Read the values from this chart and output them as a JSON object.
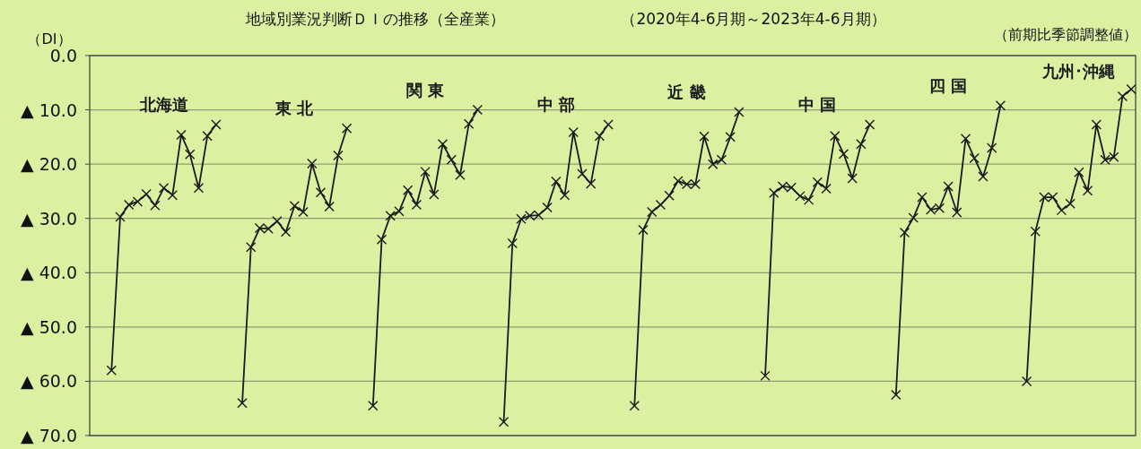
{
  "chart_data": {
    "type": "line",
    "title": "地域別業況判断ＤＩの推移（全産業）",
    "subtitle": "（2020年4-6月期～2023年4-6月期）",
    "ylabel": "（DI）",
    "annotations": [
      "（前期比季節調整値）"
    ],
    "categories": [
      null,
      null,
      null,
      null,
      null,
      null,
      null,
      null,
      null,
      null,
      null,
      null,
      null,
      null,
      null,
      null,
      null,
      null,
      null,
      null,
      null,
      null,
      null,
      null,
      null,
      null,
      null,
      null,
      null,
      null,
      null,
      null,
      null,
      null,
      null,
      null,
      null,
      null,
      null,
      null,
      null,
      null,
      null,
      null,
      null,
      null,
      null,
      null,
      null,
      null,
      null,
      null,
      null,
      null,
      null,
      null,
      null,
      null,
      null,
      null,
      null,
      null,
      null,
      null,
      null,
      null,
      null,
      null,
      null,
      null,
      null,
      null,
      null,
      null,
      null,
      null,
      null,
      null,
      null,
      null,
      null,
      null,
      null,
      null,
      null,
      null,
      null,
      null,
      null,
      null,
      null,
      null,
      null,
      null,
      null,
      null,
      null,
      null,
      null,
      null,
      null,
      null,
      null,
      null,
      null,
      null,
      null,
      null,
      null,
      null,
      null,
      null,
      null,
      null,
      null,
      null,
      null,
      null,
      null,
      null
    ],
    "series": [
      {
        "name": "北海道",
        "color": "#1a1a1a",
        "values": [
          null,
          null,
          58,
          29.7,
          27.5,
          26.9,
          25.5,
          27.6,
          24.4,
          25.7,
          14.6,
          18.2,
          24.4,
          14.8,
          12.7,
          null,
          null,
          null,
          null,
          null,
          null,
          null,
          null,
          null,
          null,
          null,
          null,
          null,
          null,
          null,
          null,
          null,
          null,
          null,
          null,
          null,
          null,
          null,
          null,
          null,
          null,
          null,
          null,
          null,
          null,
          null,
          null,
          null,
          null,
          null,
          null,
          null,
          null,
          null,
          null,
          null,
          null,
          null,
          null,
          null,
          null,
          null,
          null,
          null,
          null,
          null,
          null,
          null,
          null,
          null,
          null,
          null,
          null,
          null,
          null,
          null,
          null,
          null,
          null,
          null,
          null,
          null,
          null,
          null,
          null,
          null,
          null,
          null,
          null,
          null,
          null,
          null,
          null,
          null,
          null,
          null,
          null,
          null,
          null,
          null,
          null,
          null,
          null,
          null,
          null,
          null,
          null,
          null,
          null,
          null,
          null,
          null,
          null,
          null,
          null,
          null,
          null,
          null,
          null,
          null
        ]
      },
      {
        "name": "東 北",
        "color": "#1a1a1a",
        "values": [
          null,
          null,
          null,
          null,
          null,
          null,
          null,
          null,
          null,
          null,
          null,
          null,
          null,
          null,
          null,
          null,
          null,
          64,
          35.3,
          31.8,
          31.9,
          30.5,
          32.5,
          27.7,
          28.8,
          19.9,
          25.2,
          27.8,
          18.4,
          13.4,
          null,
          null,
          null,
          null,
          null,
          null,
          null,
          null,
          null,
          null,
          null,
          null,
          null,
          null,
          null,
          null,
          null,
          null,
          null,
          null,
          null,
          null,
          null,
          null,
          null,
          null,
          null,
          null,
          null,
          null,
          null,
          null,
          null,
          null,
          null,
          null,
          null,
          null,
          null,
          null,
          null,
          null,
          null,
          null,
          null,
          null,
          null,
          null,
          null,
          null,
          null,
          null,
          null,
          null,
          null,
          null,
          null,
          null,
          null,
          null,
          null,
          null,
          null,
          null,
          null,
          null,
          null,
          null,
          null,
          null,
          null,
          null,
          null,
          null,
          null,
          null,
          null,
          null,
          null,
          null,
          null,
          null,
          null,
          null,
          null,
          null,
          null,
          null,
          null,
          null
        ]
      },
      {
        "name": "関 東",
        "color": "#1a1a1a",
        "values": [
          null,
          null,
          null,
          null,
          null,
          null,
          null,
          null,
          null,
          null,
          null,
          null,
          null,
          null,
          null,
          null,
          null,
          null,
          null,
          null,
          null,
          null,
          null,
          null,
          null,
          null,
          null,
          null,
          null,
          null,
          null,
          null,
          64.5,
          33.9,
          29.5,
          28.7,
          24.8,
          27.5,
          21.4,
          25.6,
          16.3,
          19.2,
          22.0,
          12.6,
          10.0,
          null,
          null,
          null,
          null,
          null,
          null,
          null,
          null,
          null,
          null,
          null,
          null,
          null,
          null,
          null,
          null,
          null,
          null,
          null,
          null,
          null,
          null,
          null,
          null,
          null,
          null,
          null,
          null,
          null,
          null,
          null,
          null,
          null,
          null,
          null,
          null,
          null,
          null,
          null,
          null,
          null,
          null,
          null,
          null,
          null,
          null,
          null,
          null,
          null,
          null,
          null,
          null,
          null,
          null,
          null,
          null,
          null,
          null,
          null,
          null,
          null,
          null,
          null,
          null,
          null,
          null,
          null,
          null,
          null,
          null,
          null,
          null,
          null,
          null,
          null
        ]
      },
      {
        "name": "中 部",
        "color": "#1a1a1a",
        "values": [
          null,
          null,
          null,
          null,
          null,
          null,
          null,
          null,
          null,
          null,
          null,
          null,
          null,
          null,
          null,
          null,
          null,
          null,
          null,
          null,
          null,
          null,
          null,
          null,
          null,
          null,
          null,
          null,
          null,
          null,
          null,
          null,
          null,
          null,
          null,
          null,
          null,
          null,
          null,
          null,
          null,
          null,
          null,
          null,
          null,
          null,
          null,
          67.5,
          34.6,
          30.1,
          29.5,
          29.4,
          28.0,
          23.2,
          25.7,
          14.1,
          21.8,
          23.6,
          14.8,
          12.7,
          null,
          null,
          null,
          null,
          null,
          null,
          null,
          null,
          null,
          null,
          null,
          null,
          null,
          null,
          null,
          null,
          null,
          null,
          null,
          null,
          null,
          null,
          null,
          null,
          null,
          null,
          null,
          null,
          null,
          null,
          null,
          null,
          null,
          null,
          null,
          null,
          null,
          null,
          null,
          null,
          null,
          null,
          null,
          null,
          null,
          null,
          null,
          null,
          null,
          null,
          null,
          null,
          null,
          null,
          null,
          null,
          null,
          null,
          null,
          null
        ]
      },
      {
        "name": "近 畿",
        "color": "#1a1a1a",
        "values": [
          null,
          null,
          null,
          null,
          null,
          null,
          null,
          null,
          null,
          null,
          null,
          null,
          null,
          null,
          null,
          null,
          null,
          null,
          null,
          null,
          null,
          null,
          null,
          null,
          null,
          null,
          null,
          null,
          null,
          null,
          null,
          null,
          null,
          null,
          null,
          null,
          null,
          null,
          null,
          null,
          null,
          null,
          null,
          null,
          null,
          null,
          null,
          null,
          null,
          null,
          null,
          null,
          null,
          null,
          null,
          null,
          null,
          null,
          null,
          null,
          null,
          null,
          64.5,
          32.1,
          28.8,
          27.5,
          25.8,
          23.1,
          23.7,
          23.7,
          14.9,
          20.0,
          19.2,
          15.0,
          10.4,
          null,
          null,
          null,
          null,
          null,
          null,
          null,
          null,
          null,
          null,
          null,
          null,
          null,
          null,
          null,
          null,
          null,
          null,
          null,
          null,
          null,
          null,
          null,
          null,
          null,
          null,
          null,
          null,
          null,
          null,
          null,
          null,
          null,
          null,
          null,
          null,
          null,
          null,
          null,
          null,
          null,
          null,
          null,
          null,
          null
        ]
      },
      {
        "name": "中 国",
        "color": "#1a1a1a",
        "values": [
          null,
          null,
          null,
          null,
          null,
          null,
          null,
          null,
          null,
          null,
          null,
          null,
          null,
          null,
          null,
          null,
          null,
          null,
          null,
          null,
          null,
          null,
          null,
          null,
          null,
          null,
          null,
          null,
          null,
          null,
          null,
          null,
          null,
          null,
          null,
          null,
          null,
          null,
          null,
          null,
          null,
          null,
          null,
          null,
          null,
          null,
          null,
          null,
          null,
          null,
          null,
          null,
          null,
          null,
          null,
          null,
          null,
          null,
          null,
          null,
          null,
          null,
          null,
          null,
          null,
          null,
          null,
          null,
          null,
          null,
          null,
          null,
          null,
          null,
          null,
          null,
          null,
          59,
          25.3,
          24.1,
          24.3,
          25.9,
          26.6,
          23.3,
          24.5,
          14.8,
          18.1,
          22.6,
          16.3,
          12.7,
          null,
          null,
          null,
          null,
          null,
          null,
          null,
          null,
          null,
          null,
          null,
          null,
          null,
          null,
          null,
          null,
          null,
          null,
          null,
          null,
          null,
          null,
          null,
          null,
          null,
          null,
          null,
          null,
          null,
          null
        ]
      },
      {
        "name": "四 国",
        "color": "#1a1a1a",
        "values": [
          null,
          null,
          null,
          null,
          null,
          null,
          null,
          null,
          null,
          null,
          null,
          null,
          null,
          null,
          null,
          null,
          null,
          null,
          null,
          null,
          null,
          null,
          null,
          null,
          null,
          null,
          null,
          null,
          null,
          null,
          null,
          null,
          null,
          null,
          null,
          null,
          null,
          null,
          null,
          null,
          null,
          null,
          null,
          null,
          null,
          null,
          null,
          null,
          null,
          null,
          null,
          null,
          null,
          null,
          null,
          null,
          null,
          null,
          null,
          null,
          null,
          null,
          null,
          null,
          null,
          null,
          null,
          null,
          null,
          null,
          null,
          null,
          null,
          null,
          null,
          null,
          null,
          null,
          null,
          null,
          null,
          null,
          null,
          null,
          null,
          null,
          null,
          null,
          null,
          null,
          null,
          null,
          62.5,
          32.6,
          29.9,
          26.1,
          28.4,
          28.1,
          24.1,
          28.9,
          15.3,
          18.9,
          22.3,
          17.0,
          9.2,
          null,
          null,
          null,
          null,
          null,
          null,
          null,
          null,
          null,
          null,
          null,
          null,
          null,
          null,
          null
        ]
      },
      {
        "name": "九州･沖縄",
        "color": "#1a1a1a",
        "values": [
          null,
          null,
          null,
          null,
          null,
          null,
          null,
          null,
          null,
          null,
          null,
          null,
          null,
          null,
          null,
          null,
          null,
          null,
          null,
          null,
          null,
          null,
          null,
          null,
          null,
          null,
          null,
          null,
          null,
          null,
          null,
          null,
          null,
          null,
          null,
          null,
          null,
          null,
          null,
          null,
          null,
          null,
          null,
          null,
          null,
          null,
          null,
          null,
          null,
          null,
          null,
          null,
          null,
          null,
          null,
          null,
          null,
          null,
          null,
          null,
          null,
          null,
          null,
          null,
          null,
          null,
          null,
          null,
          null,
          null,
          null,
          null,
          null,
          null,
          null,
          null,
          null,
          null,
          null,
          null,
          null,
          null,
          null,
          null,
          null,
          null,
          null,
          null,
          null,
          null,
          null,
          null,
          null,
          null,
          null,
          null,
          null,
          null,
          null,
          null,
          null,
          null,
          null,
          null,
          null,
          null,
          null,
          60,
          32.4,
          26.1,
          26.1,
          28.5,
          27.3,
          21.5,
          24.9,
          12.7,
          19.2,
          18.7,
          7.5,
          6.2
        ]
      }
    ],
    "ylim": [
      70,
      0
    ],
    "yticks": [
      {
        "value": 0,
        "label": "0.0"
      },
      {
        "value": 10,
        "label": "▲ 10.0"
      },
      {
        "value": 20,
        "label": "▲ 20.0"
      },
      {
        "value": 30,
        "label": "▲ 30.0"
      },
      {
        "value": 40,
        "label": "▲ 40.0"
      },
      {
        "value": 50,
        "label": "▲ 50.0"
      },
      {
        "value": 60,
        "label": "▲ 60.0"
      },
      {
        "value": 70,
        "label": "▲ 70.0"
      }
    ],
    "grid": "y",
    "legend": false,
    "marker": "cross",
    "line_style": "solid"
  }
}
